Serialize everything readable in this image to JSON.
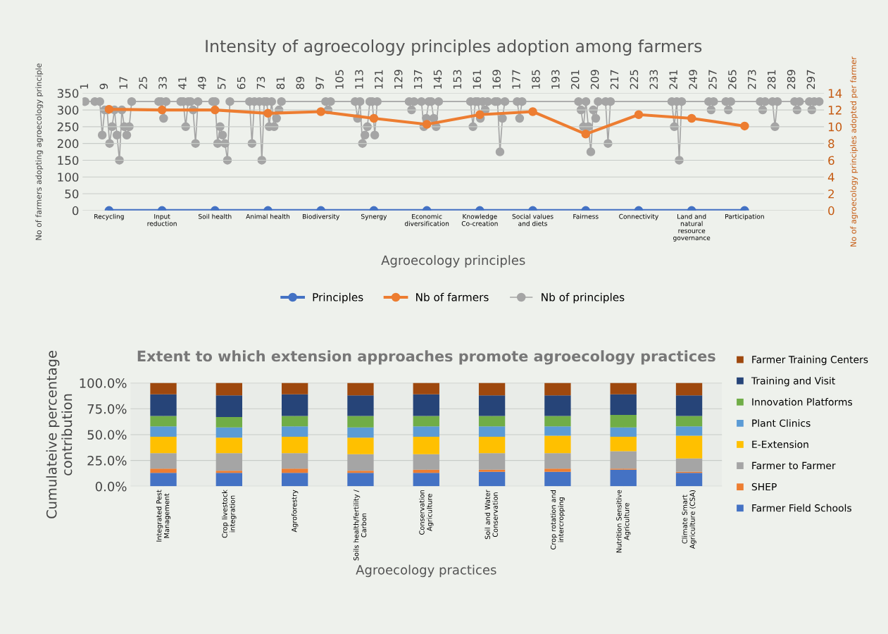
{
  "chart_data": [
    {
      "type": "line",
      "title": "Intensity of agroecology principles adoption among farmers",
      "xlabel": "Agroecology principles",
      "ylabel": "No of farmers adopting agroecology principle",
      "categories": [
        "Recycling",
        "Input\nreduction",
        "Soil health",
        "Animal health",
        "Biodiversity",
        "Synergy",
        "Economic\ndiversification",
        "Knowledge\nCo-creation",
        "Social values\nand diets",
        "Fairness",
        "Connectivity",
        "Land and\nnatural\nresource\ngovernance",
        "Participation",
        null
      ],
      "series": [
        {
          "name": "Principles",
          "color": "#4472c4",
          "values": [
            0,
            0,
            0,
            0,
            0,
            0,
            0,
            0,
            0,
            0,
            0,
            0,
            0,
            null
          ]
        },
        {
          "name": "Nb of farmers",
          "color": "#ed7d31",
          "values": [
            302,
            300,
            300,
            290,
            295,
            275,
            257,
            286,
            295,
            228,
            286,
            275,
            252,
            null
          ]
        }
      ],
      "ylim": [
        0,
        350
      ],
      "yticks": [
        0,
        50,
        100,
        150,
        200,
        250,
        300,
        350
      ],
      "grid": "y",
      "legend": "bottom",
      "marker": "circle"
    },
    {
      "type": "line",
      "ylabel": "No of agroecology principles adopted per farmer",
      "x": [
        1,
        5,
        7,
        8,
        9,
        10,
        11,
        12,
        13,
        14,
        15,
        16,
        17,
        18,
        19,
        20,
        31,
        32,
        33,
        34,
        40,
        41,
        42,
        43,
        44,
        45,
        46,
        47,
        53,
        54,
        55,
        56,
        57,
        58,
        59,
        60,
        68,
        69,
        70,
        72,
        73,
        74,
        75,
        76,
        77,
        78,
        79,
        80,
        81,
        99,
        100,
        101,
        111,
        112,
        113,
        114,
        115,
        116,
        117,
        118,
        119,
        120,
        133,
        134,
        135,
        138,
        139,
        140,
        141,
        142,
        143,
        144,
        145,
        158,
        159,
        160,
        161,
        162,
        163,
        164,
        165,
        168,
        169,
        170,
        171,
        172,
        177,
        178,
        179,
        202,
        203,
        204,
        205,
        206,
        207,
        208,
        209,
        210,
        213,
        214,
        215,
        240,
        241,
        242,
        243,
        244,
        255,
        256,
        257,
        262,
        263,
        264,
        276,
        277,
        278,
        281,
        282,
        283,
        290,
        291,
        292,
        296,
        297,
        298,
        300
      ],
      "series": [
        {
          "name": "Nb of principles",
          "color": "#a5a5a5",
          "values": [
            13,
            13,
            13,
            9,
            12,
            12,
            8,
            10,
            12,
            9,
            6,
            12,
            10,
            9,
            10,
            13,
            13,
            13,
            11,
            13,
            13,
            13,
            10,
            13,
            13,
            12,
            8,
            13,
            13,
            13,
            8,
            10,
            9,
            8,
            6,
            13,
            13,
            8,
            13,
            13,
            6,
            13,
            13,
            10,
            13,
            10,
            11,
            12,
            13,
            13,
            12,
            13,
            13,
            11,
            13,
            8,
            9,
            10,
            13,
            13,
            9,
            13,
            13,
            12,
            13,
            13,
            10,
            11,
            13,
            13,
            11,
            10,
            13,
            13,
            10,
            13,
            13,
            11,
            13,
            12,
            13,
            13,
            13,
            7,
            11,
            13,
            13,
            11,
            13,
            13,
            12,
            10,
            13,
            10,
            7,
            12,
            11,
            13,
            13,
            8,
            13,
            13,
            10,
            13,
            6,
            13,
            13,
            12,
            13,
            13,
            12,
            13,
            13,
            12,
            13,
            13,
            10,
            13,
            13,
            12,
            13,
            13,
            12,
            13,
            13
          ]
        }
      ],
      "xlim": [
        0,
        302
      ],
      "xticks": [
        1,
        9,
        17,
        25,
        33,
        41,
        49,
        57,
        65,
        73,
        81,
        89,
        97,
        105,
        113,
        121,
        129,
        137,
        145,
        153,
        161,
        169,
        177,
        185,
        193,
        201,
        209,
        217,
        225,
        233,
        241,
        249,
        257,
        265,
        273,
        281,
        289,
        297
      ],
      "ylim": [
        0,
        14
      ],
      "yticks": [
        0,
        2,
        4,
        6,
        8,
        10,
        12,
        14
      ],
      "legend": "bottom",
      "marker": "circle"
    },
    {
      "type": "bar",
      "stacked": true,
      "title": "Extent to which extension approaches promote agroecology practices",
      "xlabel": "Agroecology practices",
      "ylabel": "Cumulateive percentage\ncontribution",
      "categories": [
        "Integrated Pest\nManagement",
        "Crop livestock\nintegration",
        "Agroforestry",
        "Soils health/fertility /\nCarbon",
        "Conservation\nAgriculture",
        "Soil and Water\nConservation",
        "Crop rotation and\nintercropping",
        "Nutrition Sensitive\nAgriculture",
        "Climate Smart\nAgriculture (CSA)"
      ],
      "series": [
        {
          "name": "Farmer Field Schools",
          "color": "#4472c4",
          "values": [
            13,
            13,
            13,
            13,
            13,
            14,
            14,
            16,
            13
          ]
        },
        {
          "name": "SHEP",
          "color": "#ed7d31",
          "values": [
            4,
            2,
            4,
            2,
            3,
            2,
            3,
            1,
            1
          ]
        },
        {
          "name": "Farmer to Farmer",
          "color": "#a5a5a5",
          "values": [
            15,
            17,
            15,
            16,
            15,
            16,
            15,
            17,
            13
          ]
        },
        {
          "name": "E-Extension",
          "color": "#ffc000",
          "values": [
            16,
            15,
            16,
            16,
            17,
            16,
            17,
            14,
            22
          ]
        },
        {
          "name": "Plant Clinics",
          "color": "#5b9bd5",
          "values": [
            10,
            10,
            10,
            10,
            10,
            10,
            9,
            9,
            9
          ]
        },
        {
          "name": "Innovation Platforms",
          "color": "#70ad47",
          "values": [
            10,
            10,
            10,
            11,
            10,
            10,
            10,
            12,
            10
          ]
        },
        {
          "name": "Training and Visit",
          "color": "#264478",
          "values": [
            21,
            21,
            21,
            20,
            21,
            20,
            20,
            20,
            20
          ]
        },
        {
          "name": "Farmer Training Centers",
          "color": "#9e480e",
          "values": [
            11,
            12,
            11,
            12,
            11,
            12,
            12,
            11,
            12
          ]
        }
      ],
      "ylim": [
        0,
        100
      ],
      "yticks": [
        {
          "value": 0,
          "label": "0.0%"
        },
        {
          "value": 25,
          "label": "25.0%"
        },
        {
          "value": 50,
          "label": "50.0%"
        },
        {
          "value": 75,
          "label": "75.0%"
        },
        {
          "value": 100,
          "label": "100.0%"
        }
      ],
      "grid": true,
      "legend": "right"
    }
  ]
}
